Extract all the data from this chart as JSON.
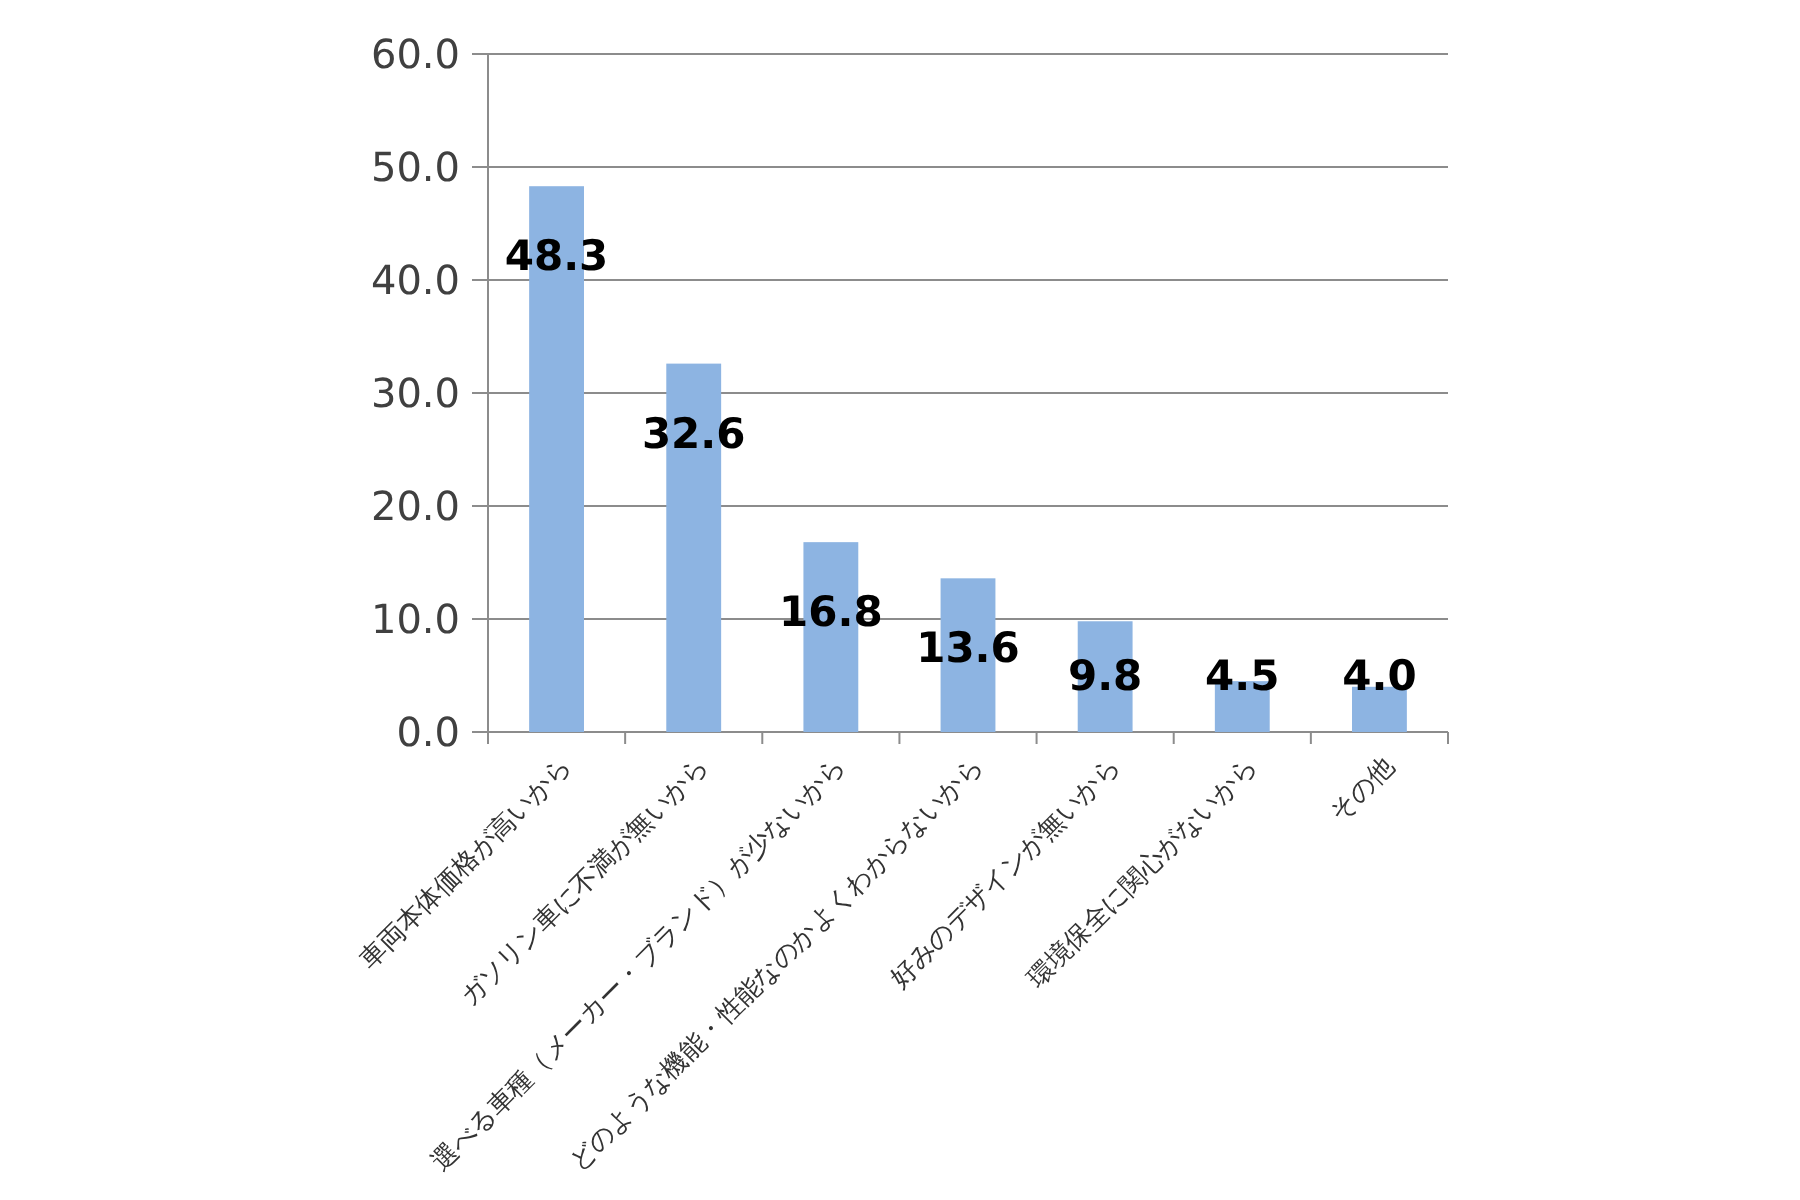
{
  "chart_data": {
    "type": "bar",
    "categories": [
      "車両本体価格が高いから",
      "ガソリン車に不満が無いから",
      "選べる車種（メーカー・ブランド）が少ないから",
      "どのような機能・性能なのかよくわからないから",
      "好みのデザインが無いから",
      "環境保全に関心がないから",
      "その他"
    ],
    "values": [
      48.3,
      32.6,
      16.8,
      13.6,
      9.8,
      4.5,
      4.0
    ],
    "value_labels": [
      "48.3",
      "32.6",
      "16.8",
      "13.6",
      "9.8",
      "4.5",
      "4.0"
    ],
    "color": "#8db4e2",
    "ylim": [
      0,
      60
    ],
    "yticks": [
      {
        "value": 0,
        "label": "0.0"
      },
      {
        "value": 10,
        "label": "10.0"
      },
      {
        "value": 20,
        "label": "20.0"
      },
      {
        "value": 30,
        "label": "30.0"
      },
      {
        "value": 40,
        "label": "40.0"
      },
      {
        "value": 50,
        "label": "50.0"
      },
      {
        "value": 60,
        "label": "60.0"
      }
    ],
    "grid": "y"
  }
}
